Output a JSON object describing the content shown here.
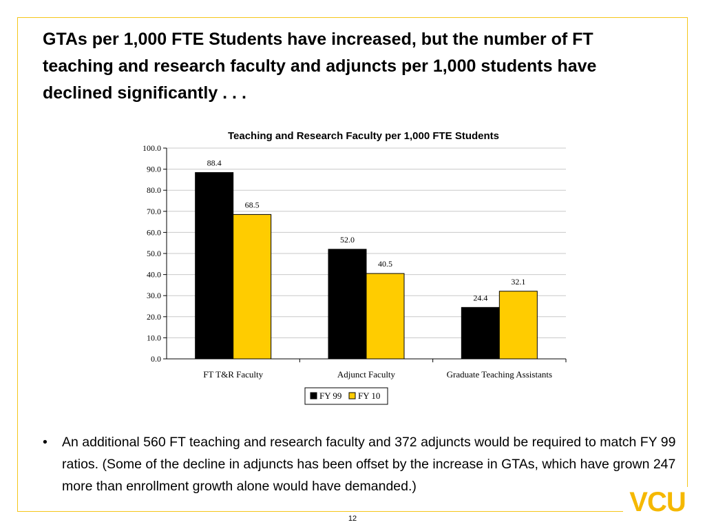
{
  "slide": {
    "title": "GTAs per 1,000 FTE Students have increased, but the number of FT teaching and research faculty and adjuncts per 1,000 students have declined significantly . . .",
    "bullet_marker": "•",
    "bullet": "An additional 560 FT teaching and research faculty and 372 adjuncts would be required to match FY 99 ratios. (Some of the decline in adjuncts has been offset by the increase in GTAs, which have grown 247 more than enrollment growth alone would have demanded.)",
    "page_number": "12",
    "logo_text": "VCU"
  },
  "colors": {
    "accent": "#F5C518",
    "fy99": "#000000",
    "fy10": "#FFCC00",
    "logo": "#F5B800"
  },
  "chart_data": {
    "type": "bar",
    "title": "Teaching and Research Faculty per 1,000 FTE Students",
    "categories": [
      "FT T&R Faculty",
      "Adjunct Faculty",
      "Graduate Teaching Assistants"
    ],
    "series": [
      {
        "name": "FY 99",
        "values": [
          88.4,
          52.0,
          24.4
        ],
        "labels": [
          "88.4",
          "52.0",
          "24.4"
        ]
      },
      {
        "name": "FY 10",
        "values": [
          68.5,
          40.5,
          32.1
        ],
        "labels": [
          "68.5",
          "40.5",
          "32.1"
        ]
      }
    ],
    "ylim": [
      0,
      100
    ],
    "yticks": [
      "0.0",
      "10.0",
      "20.0",
      "30.0",
      "40.0",
      "50.0",
      "60.0",
      "70.0",
      "80.0",
      "90.0",
      "100.0"
    ],
    "grid": true,
    "legend_position": "bottom"
  }
}
